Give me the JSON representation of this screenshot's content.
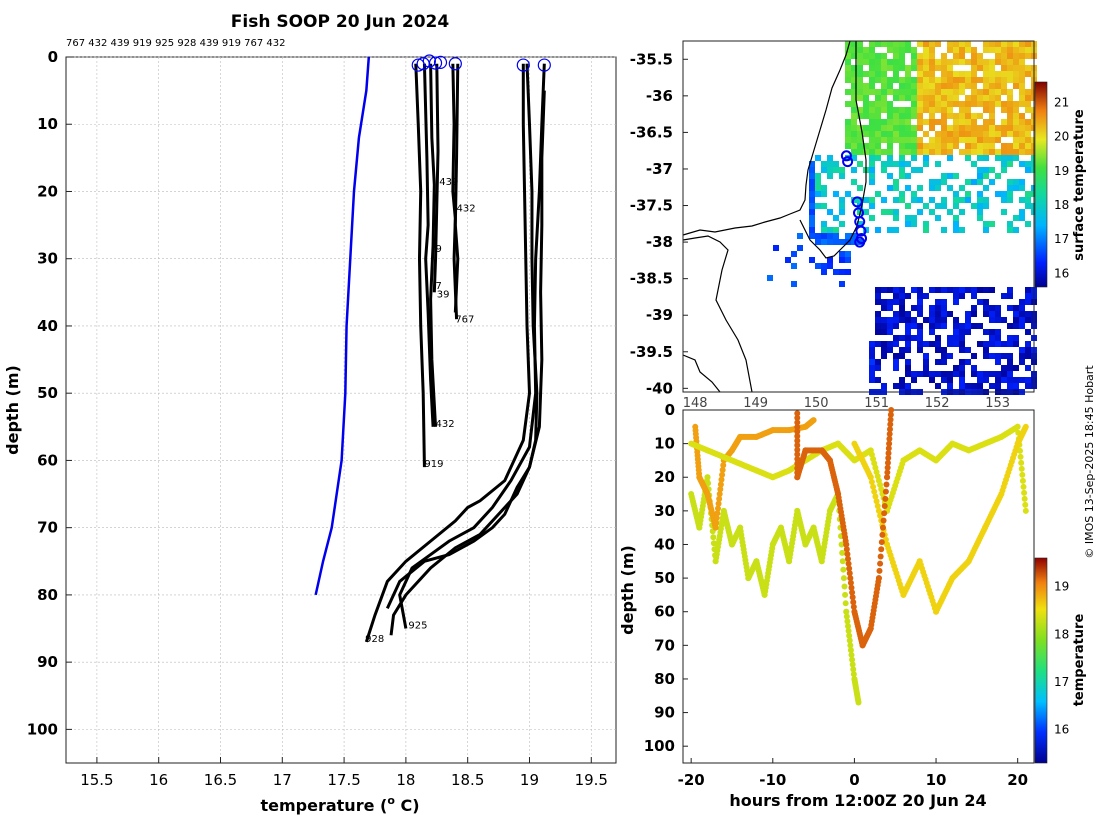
{
  "title": "Fish SOOP 20 Jun 2024",
  "profile_ids": "767 432 439 919 925 928 439 919 767 432",
  "copyright": "© IMOS 13-Sep-2025 18:45 Hobart",
  "chart_data": [
    {
      "type": "line",
      "name": "temperature-depth-profiles",
      "xlabel": "temperature (",
      "xlabel_sup": "o",
      "xlabel_end": " C)",
      "ylabel": "depth (m)",
      "xlim": [
        15.25,
        19.7
      ],
      "ylim": [
        0,
        105
      ],
      "y_reversed": true,
      "grid": true,
      "xticks": [
        15.5,
        16,
        16.5,
        17,
        17.5,
        18,
        18.5,
        19,
        19.5
      ],
      "yticks": [
        0,
        10,
        20,
        30,
        40,
        50,
        60,
        70,
        80,
        90,
        100
      ],
      "climatology": {
        "color": "#0000ee",
        "points": [
          [
            17.7,
            0
          ],
          [
            17.68,
            5
          ],
          [
            17.62,
            12
          ],
          [
            17.58,
            20
          ],
          [
            17.55,
            30
          ],
          [
            17.52,
            40
          ],
          [
            17.51,
            50
          ],
          [
            17.48,
            60
          ],
          [
            17.4,
            70
          ],
          [
            17.33,
            75
          ],
          [
            17.27,
            80
          ]
        ]
      },
      "series": [
        {
          "name": "s1",
          "points": [
            [
              18.08,
              1
            ],
            [
              18.1,
              10
            ],
            [
              18.12,
              20
            ],
            [
              18.11,
              30
            ],
            [
              18.12,
              40
            ],
            [
              18.14,
              50
            ],
            [
              18.15,
              61
            ]
          ]
        },
        {
          "name": "s2",
          "points": [
            [
              18.15,
              1
            ],
            [
              18.17,
              15
            ],
            [
              18.18,
              25
            ],
            [
              18.16,
              30
            ],
            [
              18.18,
              38
            ],
            [
              18.2,
              48
            ],
            [
              18.22,
              55
            ]
          ]
        },
        {
          "name": "s3",
          "points": [
            [
              18.2,
              1
            ],
            [
              18.21,
              12
            ],
            [
              18.23,
              19
            ],
            [
              18.22,
              28
            ],
            [
              18.2,
              36
            ],
            [
              18.21,
              45
            ],
            [
              18.24,
              55
            ]
          ]
        },
        {
          "name": "s4",
          "points": [
            [
              18.25,
              1
            ],
            [
              18.26,
              14
            ],
            [
              18.25,
              22
            ],
            [
              18.24,
              30
            ],
            [
              18.23,
              35
            ]
          ]
        },
        {
          "name": "s5",
          "points": [
            [
              18.38,
              1
            ],
            [
              18.39,
              10
            ],
            [
              18.38,
              20
            ],
            [
              18.4,
              24
            ],
            [
              18.39,
              30
            ],
            [
              18.41,
              39
            ]
          ]
        },
        {
          "name": "s6",
          "points": [
            [
              18.42,
              1
            ],
            [
              18.41,
              15
            ],
            [
              18.4,
              25
            ],
            [
              18.42,
              30
            ],
            [
              18.4,
              38
            ]
          ]
        },
        {
          "name": "s7",
          "points": [
            [
              18.95,
              1
            ],
            [
              18.95,
              10
            ],
            [
              18.96,
              20
            ],
            [
              18.97,
              30
            ],
            [
              18.98,
              40
            ],
            [
              19.0,
              50
            ],
            [
              18.95,
              57
            ],
            [
              18.8,
              63
            ],
            [
              18.6,
              66
            ],
            [
              18.5,
              67
            ],
            [
              18.4,
              69
            ],
            [
              18.2,
              72
            ],
            [
              18.0,
              75
            ],
            [
              17.85,
              78
            ],
            [
              17.75,
              83
            ],
            [
              17.68,
              87
            ]
          ]
        },
        {
          "name": "s8",
          "points": [
            [
              19.12,
              1
            ],
            [
              19.1,
              10
            ],
            [
              19.08,
              20
            ],
            [
              19.05,
              30
            ],
            [
              19.04,
              40
            ],
            [
              19.05,
              50
            ],
            [
              19.0,
              58
            ],
            [
              18.85,
              63
            ],
            [
              18.7,
              67
            ],
            [
              18.55,
              70
            ],
            [
              18.35,
              72
            ],
            [
              18.2,
              74
            ],
            [
              18.05,
              76
            ],
            [
              17.95,
              80
            ],
            [
              18.0,
              85
            ]
          ]
        },
        {
          "name": "s9",
          "points": [
            [
              18.98,
              1
            ],
            [
              19.0,
              10
            ],
            [
              19.02,
              20
            ],
            [
              19.02,
              30
            ],
            [
              19.03,
              40
            ],
            [
              19.06,
              50
            ],
            [
              19.05,
              57
            ],
            [
              19.0,
              61
            ],
            [
              18.9,
              64
            ],
            [
              18.8,
              68
            ],
            [
              18.7,
              70
            ],
            [
              18.55,
              72
            ],
            [
              18.35,
              74
            ],
            [
              18.15,
              75
            ],
            [
              17.95,
              78
            ],
            [
              17.85,
              82
            ]
          ]
        },
        {
          "name": "s10",
          "points": [
            [
              19.12,
              5
            ],
            [
              19.1,
              15
            ],
            [
              19.1,
              25
            ],
            [
              19.09,
              35
            ],
            [
              19.1,
              45
            ],
            [
              19.08,
              55
            ],
            [
              19.0,
              61
            ],
            [
              18.9,
              65
            ],
            [
              18.75,
              68
            ],
            [
              18.6,
              71
            ],
            [
              18.4,
              73
            ],
            [
              18.2,
              76
            ],
            [
              18.0,
              80
            ],
            [
              17.9,
              83
            ],
            [
              17.88,
              86
            ]
          ]
        }
      ],
      "surface_markers": [
        [
          18.1,
          1.2
        ],
        [
          18.14,
          1.0
        ],
        [
          18.19,
          0.6
        ],
        [
          18.24,
          0.9
        ],
        [
          18.28,
          0.8
        ],
        [
          18.4,
          1.0
        ],
        [
          18.95,
          1.2
        ],
        [
          19.12,
          1.2
        ]
      ],
      "labels": [
        {
          "text": "439",
          "x": 18.27,
          "y": 19
        },
        {
          "text": "432",
          "x": 18.41,
          "y": 23
        },
        {
          "text": "9",
          "x": 18.24,
          "y": 29
        },
        {
          "text": "7",
          "x": 18.24,
          "y": 34.5
        },
        {
          "text": "39",
          "x": 18.25,
          "y": 35.8
        },
        {
          "text": "767",
          "x": 18.4,
          "y": 39.5
        },
        {
          "text": "432",
          "x": 18.24,
          "y": 55
        },
        {
          "text": "919",
          "x": 18.15,
          "y": 61
        },
        {
          "text": "925",
          "x": 18.02,
          "y": 85
        },
        {
          "text": "928",
          "x": 17.67,
          "y": 87
        }
      ]
    },
    {
      "type": "heatmap",
      "name": "surface-temperature-map",
      "x_tick_labels": [
        "148",
        "149",
        "150",
        "151",
        "152",
        "153"
      ],
      "y_tick_labels": [
        "-35.5",
        "-36",
        "-36.5",
        "-37",
        "-37.5",
        "-38",
        "-38.5",
        "-39",
        "-39.5",
        "-40"
      ],
      "ylim": [
        -40.05,
        -35.25
      ],
      "xlim": [
        147.8,
        153.6
      ],
      "colorbar_label": "surface temperature",
      "colorbar_ticks": [
        "21",
        "20",
        "19",
        "18",
        "17",
        "16"
      ],
      "colorbar_range": [
        15.6,
        21.6
      ],
      "station_markers": [
        [
          -36.82
        ],
        [
          -36.9
        ],
        [
          -37.45
        ],
        [
          -37.6
        ],
        [
          -37.72
        ],
        [
          -37.85
        ],
        [
          -37.95
        ],
        [
          -38.0
        ]
      ],
      "station_lons": [
        150.5,
        150.52,
        150.68,
        150.7,
        150.72,
        150.74,
        150.75,
        150.72
      ]
    },
    {
      "type": "scatter",
      "name": "depth-time-section",
      "xlabel": "hours from 12:00Z 20 Jun 24",
      "ylabel": "depth (m)",
      "xlim": [
        -21,
        22
      ],
      "ylim": [
        0,
        105
      ],
      "y_reversed": true,
      "xticks": [
        -20,
        -10,
        0,
        10,
        20
      ],
      "yticks": [
        0,
        10,
        20,
        30,
        40,
        50,
        60,
        70,
        80,
        90,
        100
      ],
      "colorbar_label": "temperature",
      "colorbar_ticks": [
        "19",
        "18",
        "17",
        "16"
      ],
      "colorbar_range": [
        15.3,
        19.6
      ],
      "tracks": [
        {
          "temp": 18.3,
          "points": [
            [
              -20,
              25
            ],
            [
              -19,
              35
            ],
            [
              -18,
              20
            ],
            [
              -17,
              45
            ],
            [
              -16,
              30
            ],
            [
              -15,
              40
            ],
            [
              -14,
              35
            ],
            [
              -13,
              50
            ],
            [
              -12,
              45
            ],
            [
              -11,
              55
            ],
            [
              -10,
              40
            ],
            [
              -9,
              35
            ],
            [
              -8,
              45
            ],
            [
              -7,
              30
            ],
            [
              -6,
              40
            ],
            [
              -5,
              35
            ],
            [
              -4,
              45
            ],
            [
              -3,
              30
            ],
            [
              -2,
              25
            ],
            [
              -1,
              60
            ],
            [
              0,
              80
            ],
            [
              0.5,
              87
            ]
          ]
        },
        {
          "temp": 18.9,
          "points": [
            [
              -19.5,
              5
            ],
            [
              -19,
              20
            ],
            [
              -18,
              25
            ],
            [
              -17,
              35
            ],
            [
              -16,
              15
            ],
            [
              -15,
              12
            ],
            [
              -14,
              8
            ],
            [
              -12,
              8
            ],
            [
              -10,
              6
            ],
            [
              -8,
              6
            ],
            [
              -6,
              5
            ],
            [
              -5,
              3
            ]
          ]
        },
        {
          "temp": 18.4,
          "points": [
            [
              -20,
              10
            ],
            [
              -18,
              12
            ],
            [
              -16,
              14
            ],
            [
              -14,
              16
            ],
            [
              -12,
              18
            ],
            [
              -10,
              20
            ],
            [
              -8,
              18
            ],
            [
              -6,
              15
            ],
            [
              -4,
              12
            ],
            [
              -2,
              10
            ],
            [
              0,
              15
            ],
            [
              2,
              12
            ],
            [
              4,
              30
            ],
            [
              6,
              15
            ],
            [
              8,
              12
            ],
            [
              10,
              15
            ],
            [
              12,
              10
            ],
            [
              14,
              12
            ],
            [
              16,
              10
            ],
            [
              18,
              8
            ],
            [
              20,
              5
            ],
            [
              21,
              30
            ]
          ]
        },
        {
          "temp": 18.6,
          "points": [
            [
              0,
              10
            ],
            [
              2,
              20
            ],
            [
              4,
              40
            ],
            [
              6,
              55
            ],
            [
              8,
              45
            ],
            [
              10,
              60
            ],
            [
              12,
              50
            ],
            [
              14,
              45
            ],
            [
              16,
              35
            ],
            [
              18,
              25
            ],
            [
              20,
              10
            ],
            [
              21,
              5
            ]
          ]
        },
        {
          "temp": 19.2,
          "points": [
            [
              -7,
              1
            ],
            [
              -7,
              20
            ],
            [
              -6,
              12
            ],
            [
              -4,
              12
            ],
            [
              -3,
              15
            ],
            [
              -2,
              25
            ],
            [
              -1,
              40
            ],
            [
              0,
              60
            ],
            [
              1,
              70
            ],
            [
              2,
              65
            ],
            [
              3,
              50
            ],
            [
              4,
              20
            ],
            [
              4.5,
              0
            ]
          ]
        }
      ]
    }
  ]
}
